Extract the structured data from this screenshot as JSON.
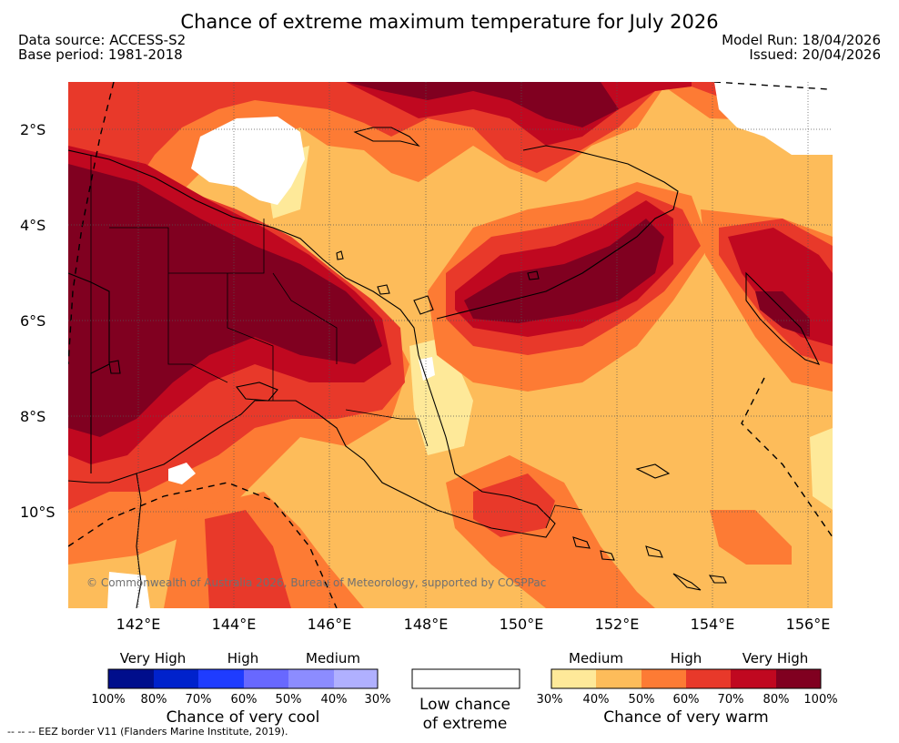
{
  "header": {
    "title": "Chance of extreme maximum temperature for July 2026",
    "data_source": "Data source: ACCESS-S2",
    "base_period": "Base period: 1981-2018",
    "model_run": "Model Run: 18/04/2026",
    "issued": "Issued: 20/04/2026"
  },
  "map": {
    "lat_labels": [
      "2°S",
      "4°S",
      "6°S",
      "8°S",
      "10°S"
    ],
    "lon_labels": [
      "142°E",
      "144°E",
      "146°E",
      "148°E",
      "150°E",
      "152°E",
      "154°E",
      "156°E"
    ],
    "copyright": "© Commonwealth of Australia 2026, Bureau of Meteorology, supported by COSPPac",
    "colors": {
      "warm_30_40": "#fee999",
      "warm_40_50": "#fdbc5a",
      "warm_50_60": "#fd7b34",
      "warm_60_70": "#e8392a",
      "warm_70_80": "#c00820",
      "warm_80_100": "#800020",
      "low_chance": "#ffffff",
      "coastline": "#000000"
    }
  },
  "legend": {
    "cool": {
      "levels": [
        "Very High",
        "High",
        "Medium"
      ],
      "ticks": [
        "100%",
        "80%",
        "70%",
        "60%",
        "50%",
        "40%",
        "30%"
      ],
      "caption": "Chance of very cool",
      "colors": [
        "#000e8c",
        "#0022cc",
        "#1f3cff",
        "#6868ff",
        "#8c8cff",
        "#b0b0ff"
      ]
    },
    "low": {
      "caption_line1": "Low chance",
      "caption_line2": "of extreme"
    },
    "warm": {
      "levels": [
        "Medium",
        "High",
        "Very High"
      ],
      "ticks": [
        "30%",
        "40%",
        "50%",
        "60%",
        "70%",
        "80%",
        "100%"
      ],
      "caption": "Chance of very warm",
      "colors": [
        "#fee999",
        "#fdbc5a",
        "#fd7b34",
        "#e8392a",
        "#c00820",
        "#800020"
      ]
    }
  },
  "footer": {
    "eez_note": "--  --  -- EEZ border V11 (Flanders Marine Institute, 2019)."
  }
}
